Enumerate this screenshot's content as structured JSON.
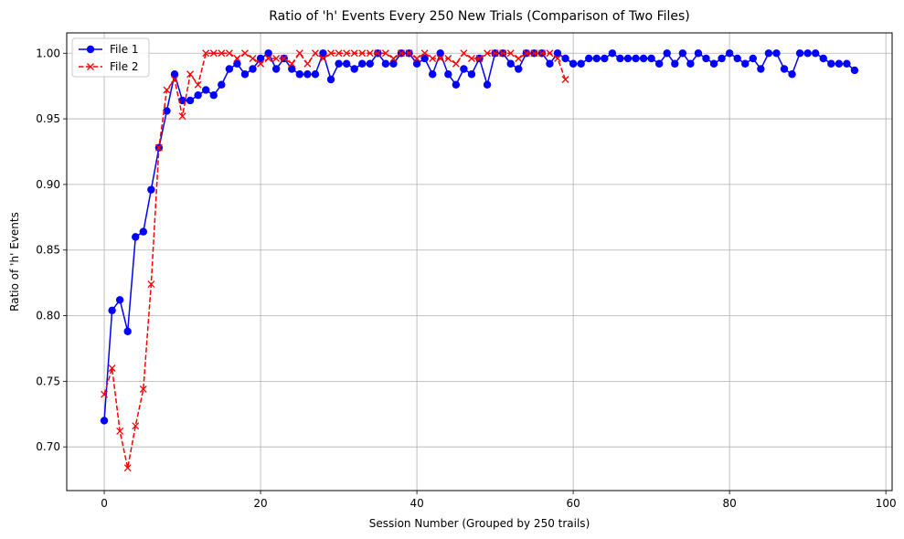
{
  "chart_data": {
    "type": "line",
    "title": "Ratio of 'h' Events Every 250 New Trials (Comparison of Two Files)",
    "xlabel": "Session Number (Grouped by 250 trails)",
    "ylabel": "Ratio of 'h' Events",
    "xlim": [
      -4.8,
      100.8
    ],
    "ylim": [
      0.6667,
      1.0155
    ],
    "xticks": [
      0,
      20,
      40,
      60,
      80,
      100
    ],
    "xtick_labels": [
      "0",
      "20",
      "40",
      "60",
      "80",
      "100"
    ],
    "yticks": [
      0.7,
      0.75,
      0.8,
      0.85,
      0.9,
      0.95,
      1.0
    ],
    "ytick_labels": [
      "0.70",
      "0.75",
      "0.80",
      "0.85",
      "0.90",
      "0.95",
      "1.00"
    ],
    "grid": true,
    "legend_position": "top-left",
    "series": [
      {
        "name": "File 1",
        "color": "#0000ff",
        "marker": "circle",
        "linestyle": "solid",
        "x": [
          0,
          1,
          2,
          3,
          4,
          5,
          6,
          7,
          8,
          9,
          10,
          11,
          12,
          13,
          14,
          15,
          16,
          17,
          18,
          19,
          20,
          21,
          22,
          23,
          24,
          25,
          26,
          27,
          28,
          29,
          30,
          31,
          32,
          33,
          34,
          35,
          36,
          37,
          38,
          39,
          40,
          41,
          42,
          43,
          44,
          45,
          46,
          47,
          48,
          49,
          50,
          51,
          52,
          53,
          54,
          55,
          56,
          57,
          58,
          59,
          60,
          61,
          62,
          63,
          64,
          65,
          66,
          67,
          68,
          69,
          70,
          71,
          72,
          73,
          74,
          75,
          76,
          77,
          78,
          79,
          80,
          81,
          82,
          83,
          84,
          85,
          86,
          87,
          88,
          89,
          90,
          91,
          92,
          93,
          94,
          95,
          96
        ],
        "values": [
          0.72,
          0.804,
          0.812,
          0.788,
          0.86,
          0.864,
          0.896,
          0.928,
          0.956,
          0.984,
          0.964,
          0.964,
          0.968,
          0.972,
          0.968,
          0.976,
          0.988,
          0.992,
          0.984,
          0.988,
          0.996,
          1.0,
          0.988,
          0.996,
          0.988,
          0.984,
          0.984,
          0.984,
          1.0,
          0.98,
          0.992,
          0.992,
          0.988,
          0.992,
          0.992,
          1.0,
          0.992,
          0.992,
          1.0,
          1.0,
          0.992,
          0.996,
          0.984,
          1.0,
          0.984,
          0.976,
          0.988,
          0.984,
          0.996,
          0.976,
          1.0,
          1.0,
          0.992,
          0.988,
          1.0,
          1.0,
          1.0,
          0.992,
          1.0,
          0.996,
          0.992,
          0.992,
          0.996,
          0.996,
          0.996,
          1.0,
          0.996,
          0.996,
          0.996,
          0.996,
          0.996,
          0.992,
          1.0,
          0.992,
          1.0,
          0.992,
          1.0,
          0.996,
          0.992,
          0.996,
          1.0,
          0.996,
          0.992,
          0.996,
          0.988,
          1.0,
          1.0,
          0.988,
          0.984,
          1.0,
          1.0,
          1.0,
          0.996,
          0.992,
          0.992,
          0.992,
          0.987
        ]
      },
      {
        "name": "File 2",
        "color": "#ff0000",
        "marker": "x",
        "linestyle": "dashed",
        "x": [
          0,
          1,
          2,
          3,
          4,
          5,
          6,
          7,
          8,
          9,
          10,
          11,
          12,
          13,
          14,
          15,
          16,
          17,
          18,
          19,
          20,
          21,
          22,
          23,
          24,
          25,
          26,
          27,
          28,
          29,
          30,
          31,
          32,
          33,
          34,
          35,
          36,
          37,
          38,
          39,
          40,
          41,
          42,
          43,
          44,
          45,
          46,
          47,
          48,
          49,
          50,
          51,
          52,
          53,
          54,
          55,
          56,
          57,
          58,
          59
        ],
        "values": [
          0.74,
          0.76,
          0.712,
          0.684,
          0.716,
          0.744,
          0.824,
          0.928,
          0.972,
          0.98,
          0.952,
          0.984,
          0.976,
          1.0,
          1.0,
          1.0,
          1.0,
          0.996,
          1.0,
          0.996,
          0.992,
          0.996,
          0.996,
          0.996,
          0.992,
          1.0,
          0.992,
          1.0,
          0.996,
          1.0,
          1.0,
          1.0,
          1.0,
          1.0,
          1.0,
          1.0,
          1.0,
          0.996,
          1.0,
          1.0,
          0.996,
          1.0,
          0.996,
          0.996,
          0.996,
          0.992,
          1.0,
          0.996,
          0.996,
          1.0,
          1.0,
          1.0,
          1.0,
          0.996,
          1.0,
          1.0,
          1.0,
          1.0,
          0.996,
          0.98
        ]
      }
    ]
  }
}
